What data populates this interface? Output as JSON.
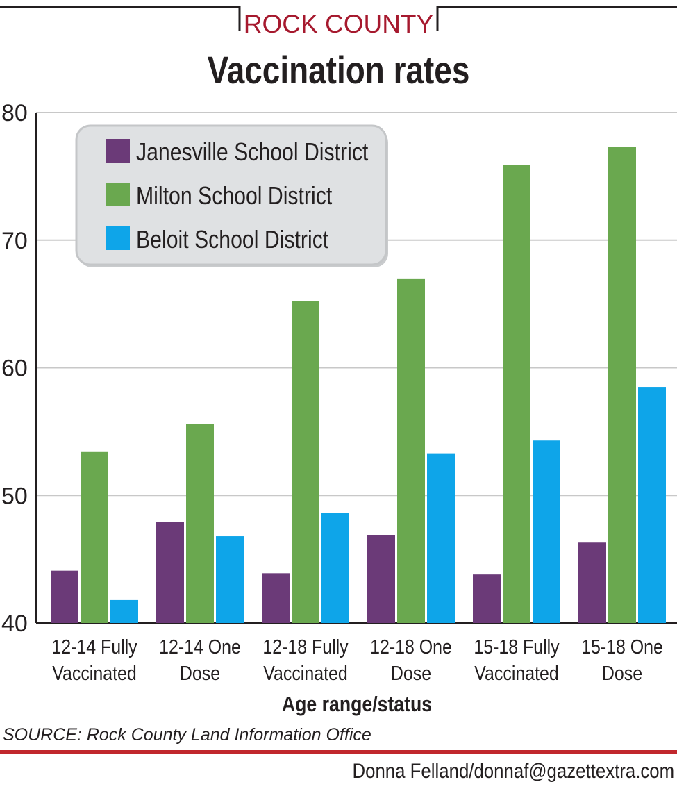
{
  "header": {
    "kicker": "ROCK COUNTY",
    "title": "Vaccination rates"
  },
  "colors": {
    "janesville": "#6b3a78",
    "milton": "#6aa84f",
    "beloit": "#0ea5e9",
    "legend_bg": "#dfe1e3",
    "grid": "#c8c8c8",
    "kicker": "#a6192e",
    "rule": "#c1272d"
  },
  "chart_data": {
    "type": "bar",
    "xlabel": "Age range/status",
    "ylabel": "",
    "ylim": [
      40,
      80
    ],
    "yticks": [
      "80",
      "70",
      "60",
      "50",
      "40"
    ],
    "grid": true,
    "legend_position": "top-left",
    "categories": [
      [
        "12-14 Fully",
        "Vaccinated"
      ],
      [
        "12-14 One",
        "Dose"
      ],
      [
        "12-18 Fully",
        "Vaccinated"
      ],
      [
        "12-18 One",
        "Dose"
      ],
      [
        "15-18 Fully",
        "Vaccinated"
      ],
      [
        "15-18 One",
        "Dose"
      ]
    ],
    "series": [
      {
        "name": "Janesville School District",
        "color": "#6b3a78",
        "values": [
          44.1,
          47.9,
          43.9,
          46.9,
          43.8,
          46.3
        ]
      },
      {
        "name": "Milton School District",
        "color": "#6aa84f",
        "values": [
          53.4,
          55.6,
          65.2,
          67.0,
          75.9,
          77.3
        ]
      },
      {
        "name": "Beloit School District",
        "color": "#0ea5e9",
        "values": [
          41.8,
          46.8,
          48.6,
          53.3,
          54.3,
          58.5
        ]
      }
    ]
  },
  "footer": {
    "source": "SOURCE: Rock County Land Information Office",
    "credit": "Donna Felland/donnaf@gazettextra.com"
  }
}
